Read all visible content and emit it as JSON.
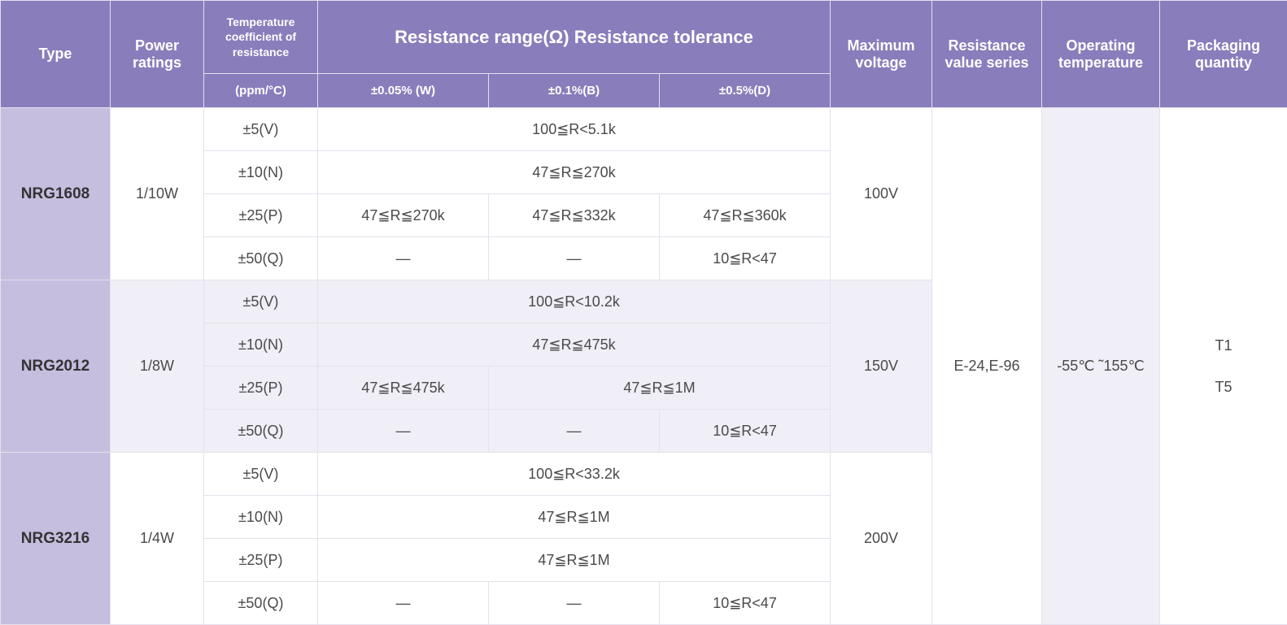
{
  "headers": {
    "type": "Type",
    "power": "Power ratings",
    "tcr_top": "Temperature coefficient of resistance",
    "tcr_sub": "(ppm/°C)",
    "rr_title": "Resistance range(Ω) Resistance tolerance",
    "rr_w": "±0.05% (W)",
    "rr_b": "±0.1%(B)",
    "rr_d": "±0.5%(D)",
    "max_v": "Maximum voltage",
    "rvs": "Resistance value series",
    "ot": "Operating temperature",
    "pq": "Packaging quantity"
  },
  "shared": {
    "rvs": "E-24,E-96",
    "ot": "-55℃ ˜155℃",
    "pq_1": "T1",
    "pq_2": "T5"
  },
  "groups": [
    {
      "type": "NRG1608",
      "power": "1/10W",
      "max_v": "100V",
      "alt": false,
      "rows": [
        {
          "tcr": "±5(V)",
          "cells": [
            {
              "span": 3,
              "val": "100≦R<5.1k"
            }
          ]
        },
        {
          "tcr": "±10(N)",
          "cells": [
            {
              "span": 3,
              "val": "47≦R≦270k"
            }
          ]
        },
        {
          "tcr": "±25(P)",
          "cells": [
            {
              "span": 1,
              "val": "47≦R≦270k"
            },
            {
              "span": 1,
              "val": "47≦R≦332k"
            },
            {
              "span": 1,
              "val": "47≦R≦360k"
            }
          ]
        },
        {
          "tcr": "±50(Q)",
          "cells": [
            {
              "span": 1,
              "val": "—"
            },
            {
              "span": 1,
              "val": "—"
            },
            {
              "span": 1,
              "val": "10≦R<47"
            }
          ]
        }
      ]
    },
    {
      "type": "NRG2012",
      "power": "1/8W",
      "max_v": "150V",
      "alt": true,
      "rows": [
        {
          "tcr": "±5(V)",
          "cells": [
            {
              "span": 3,
              "val": "100≦R<10.2k"
            }
          ]
        },
        {
          "tcr": "±10(N)",
          "cells": [
            {
              "span": 3,
              "val": "47≦R≦475k"
            }
          ]
        },
        {
          "tcr": "±25(P)",
          "cells": [
            {
              "span": 1,
              "val": "47≦R≦475k"
            },
            {
              "span": 2,
              "val": "47≦R≦1M"
            }
          ]
        },
        {
          "tcr": "±50(Q)",
          "cells": [
            {
              "span": 1,
              "val": "—"
            },
            {
              "span": 1,
              "val": "—"
            },
            {
              "span": 1,
              "val": "10≦R<47"
            }
          ]
        }
      ]
    },
    {
      "type": "NRG3216",
      "power": "1/4W",
      "max_v": "200V",
      "alt": false,
      "rows": [
        {
          "tcr": "±5(V)",
          "cells": [
            {
              "span": 3,
              "val": "100≦R<33.2k"
            }
          ]
        },
        {
          "tcr": "±10(N)",
          "cells": [
            {
              "span": 3,
              "val": "47≦R≦1M"
            }
          ]
        },
        {
          "tcr": "±25(P)",
          "cells": [
            {
              "span": 3,
              "val": "47≦R≦1M"
            }
          ]
        },
        {
          "tcr": "±50(Q)",
          "cells": [
            {
              "span": 1,
              "val": "—"
            },
            {
              "span": 1,
              "val": "—"
            },
            {
              "span": 1,
              "val": "10≦R<47"
            }
          ]
        }
      ]
    }
  ]
}
